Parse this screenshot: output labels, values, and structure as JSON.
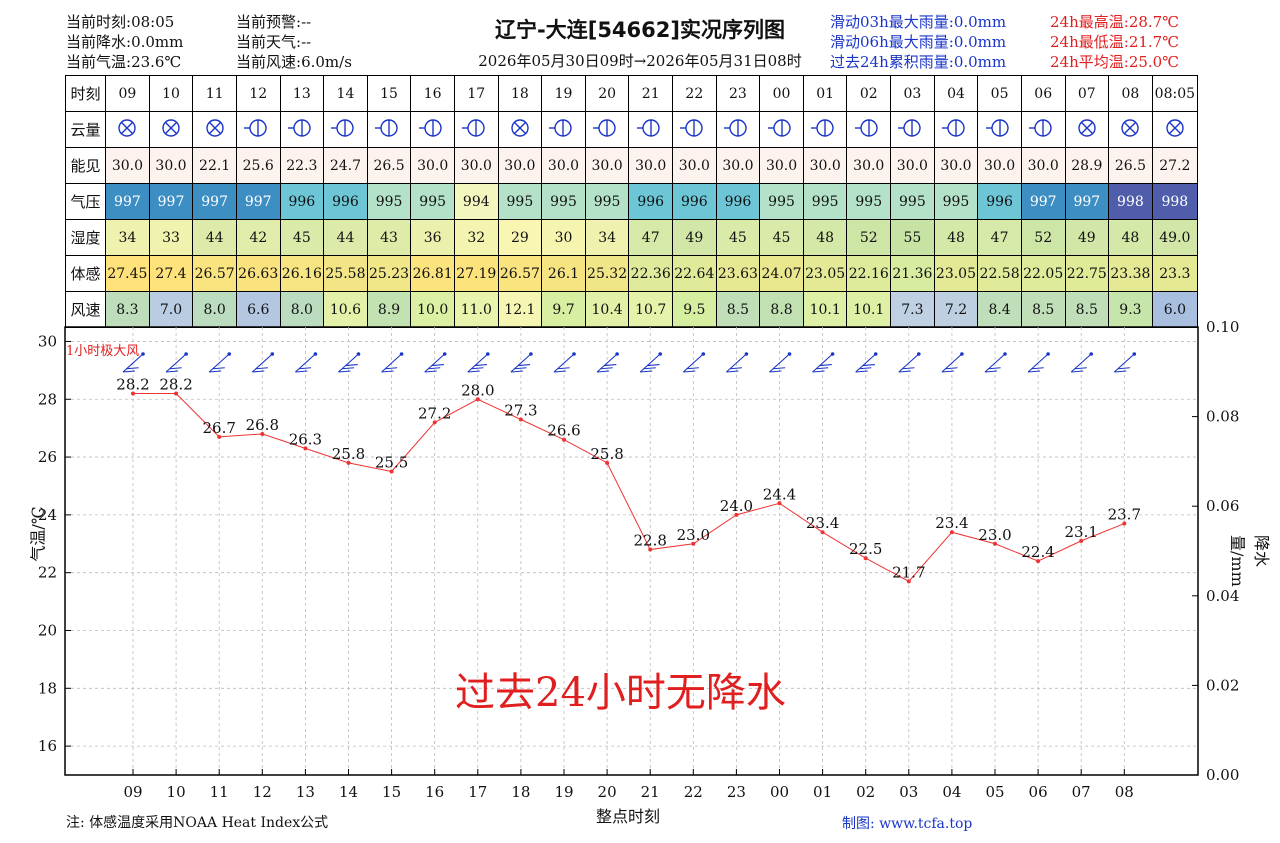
{
  "header": {
    "left": [
      {
        "label": "当前时刻",
        "value": "08:05"
      },
      {
        "label": "当前降水",
        "value": "0.0mm"
      },
      {
        "label": "当前气温",
        "value": "23.6℃"
      }
    ],
    "mid": [
      {
        "label": "当前预警",
        "value": "--"
      },
      {
        "label": "当前天气",
        "value": "--"
      },
      {
        "label": "当前风速",
        "value": "6.0m/s"
      }
    ],
    "title": "辽宁-大连[54662]实况序列图",
    "subtitle": "2026年05月30日09时→2026年05月31日08时",
    "rain": [
      {
        "label": "滑动03h最大雨量",
        "value": "0.0mm"
      },
      {
        "label": "滑动06h最大雨量",
        "value": "0.0mm"
      },
      {
        "label": "过去24h累积雨量",
        "value": "0.0mm"
      }
    ],
    "temp": [
      {
        "label": "24h最高温",
        "value": "28.7℃"
      },
      {
        "label": "24h最低温",
        "value": "21.7℃"
      },
      {
        "label": "24h平均温",
        "value": "25.0℃"
      }
    ]
  },
  "table": {
    "row_labels": [
      "时刻",
      "云量",
      "能见",
      "气压",
      "湿度",
      "体感",
      "风速"
    ],
    "times": [
      "09",
      "10",
      "11",
      "12",
      "13",
      "14",
      "15",
      "16",
      "17",
      "18",
      "19",
      "20",
      "21",
      "22",
      "23",
      "00",
      "01",
      "02",
      "03",
      "04",
      "05",
      "06",
      "07",
      "08",
      "08:05"
    ],
    "cloud_icons": [
      "overcast-x-icon",
      "overcast-x-icon",
      "overcast-x-icon",
      "partly-cloudy-icon",
      "partly-cloudy-icon",
      "partly-cloudy-icon",
      "partly-cloudy-icon",
      "partly-cloudy-icon",
      "partly-cloudy-icon",
      "overcast-x-icon",
      "partly-cloudy-icon",
      "partly-cloudy-icon",
      "partly-cloudy-icon",
      "partly-cloudy-icon",
      "partly-cloudy-icon",
      "partly-cloudy-icon",
      "partly-cloudy-icon",
      "partly-cloudy-icon",
      "partly-cloudy-icon",
      "partly-cloudy-icon",
      "partly-cloudy-icon",
      "partly-cloudy-icon",
      "overcast-x-icon",
      "overcast-x-icon",
      "overcast-x-icon"
    ],
    "visibility": [
      "30.0",
      "30.0",
      "22.1",
      "25.6",
      "22.3",
      "24.7",
      "26.5",
      "30.0",
      "30.0",
      "30.0",
      "30.0",
      "30.0",
      "30.0",
      "30.0",
      "30.0",
      "30.0",
      "30.0",
      "30.0",
      "30.0",
      "30.0",
      "30.0",
      "30.0",
      "28.9",
      "26.5",
      "27.2"
    ],
    "pressure": [
      "997",
      "997",
      "997",
      "997",
      "996",
      "996",
      "995",
      "995",
      "994",
      "995",
      "995",
      "995",
      "996",
      "996",
      "996",
      "995",
      "995",
      "995",
      "995",
      "995",
      "996",
      "997",
      "997",
      "998",
      "998"
    ],
    "humidity": [
      "34",
      "33",
      "44",
      "42",
      "45",
      "44",
      "43",
      "36",
      "32",
      "29",
      "30",
      "34",
      "47",
      "49",
      "45",
      "45",
      "48",
      "52",
      "55",
      "48",
      "47",
      "52",
      "49",
      "48",
      "49.0"
    ],
    "feels_like": [
      "27.45",
      "27.4",
      "26.57",
      "26.63",
      "26.16",
      "25.58",
      "25.23",
      "26.81",
      "27.19",
      "26.57",
      "26.1",
      "25.32",
      "22.36",
      "22.64",
      "23.63",
      "24.07",
      "23.05",
      "22.16",
      "21.36",
      "23.05",
      "22.58",
      "22.05",
      "22.75",
      "23.38",
      "23.3"
    ],
    "wind_speed": [
      "8.3",
      "7.0",
      "8.0",
      "6.6",
      "8.0",
      "10.6",
      "8.9",
      "10.0",
      "11.0",
      "12.1",
      "9.7",
      "10.4",
      "10.7",
      "9.5",
      "8.5",
      "8.8",
      "10.1",
      "10.1",
      "7.3",
      "7.2",
      "8.4",
      "8.5",
      "8.5",
      "9.3",
      "6.0"
    ]
  },
  "colors": {
    "p994": "#f3f7bd",
    "p995": "#b4e2c8",
    "p996": "#6cc6d6",
    "p997": "#3d8ec3",
    "p998": "#4f5daa",
    "line": "#ee3333",
    "wind": "#1a35c8"
  },
  "chart_data": {
    "type": "line",
    "x": [
      "09",
      "10",
      "11",
      "12",
      "13",
      "14",
      "15",
      "16",
      "17",
      "18",
      "19",
      "20",
      "21",
      "22",
      "23",
      "00",
      "01",
      "02",
      "03",
      "04",
      "05",
      "06",
      "07",
      "08"
    ],
    "series": [
      {
        "values": [
          28.2,
          28.2,
          26.7,
          26.8,
          26.3,
          25.8,
          25.5,
          27.2,
          28.0,
          27.3,
          26.6,
          25.8,
          22.8,
          23.0,
          24.0,
          24.4,
          23.4,
          22.5,
          21.7,
          23.4,
          23.0,
          22.4,
          23.1,
          23.7
        ]
      }
    ],
    "wind_direction_deg": [
      45,
      45,
      60,
      45,
      30,
      35,
      40,
      40,
      40,
      60,
      35,
      30,
      35,
      35,
      35,
      60,
      70,
      70,
      60,
      55,
      40,
      35,
      30,
      45
    ],
    "xlabel": "整点时刻",
    "ylabel": "气温/℃",
    "y2label": "降水量/mm",
    "ylim": [
      15.0,
      30.5
    ],
    "y_ticks": [
      16,
      18,
      20,
      22,
      24,
      26,
      28,
      30
    ],
    "y2lim": [
      0.0,
      0.1
    ],
    "y2_ticks": [
      "0.00",
      "0.02",
      "0.04",
      "0.06",
      "0.08",
      "0.10"
    ],
    "grid": true,
    "annotation": "过去24小时无降水",
    "wind_legend": "1小时极大风"
  },
  "footer": {
    "note": "注: 体感温度采用NOAA Heat Index公式",
    "credit": "制图: www.tcfa.top"
  }
}
